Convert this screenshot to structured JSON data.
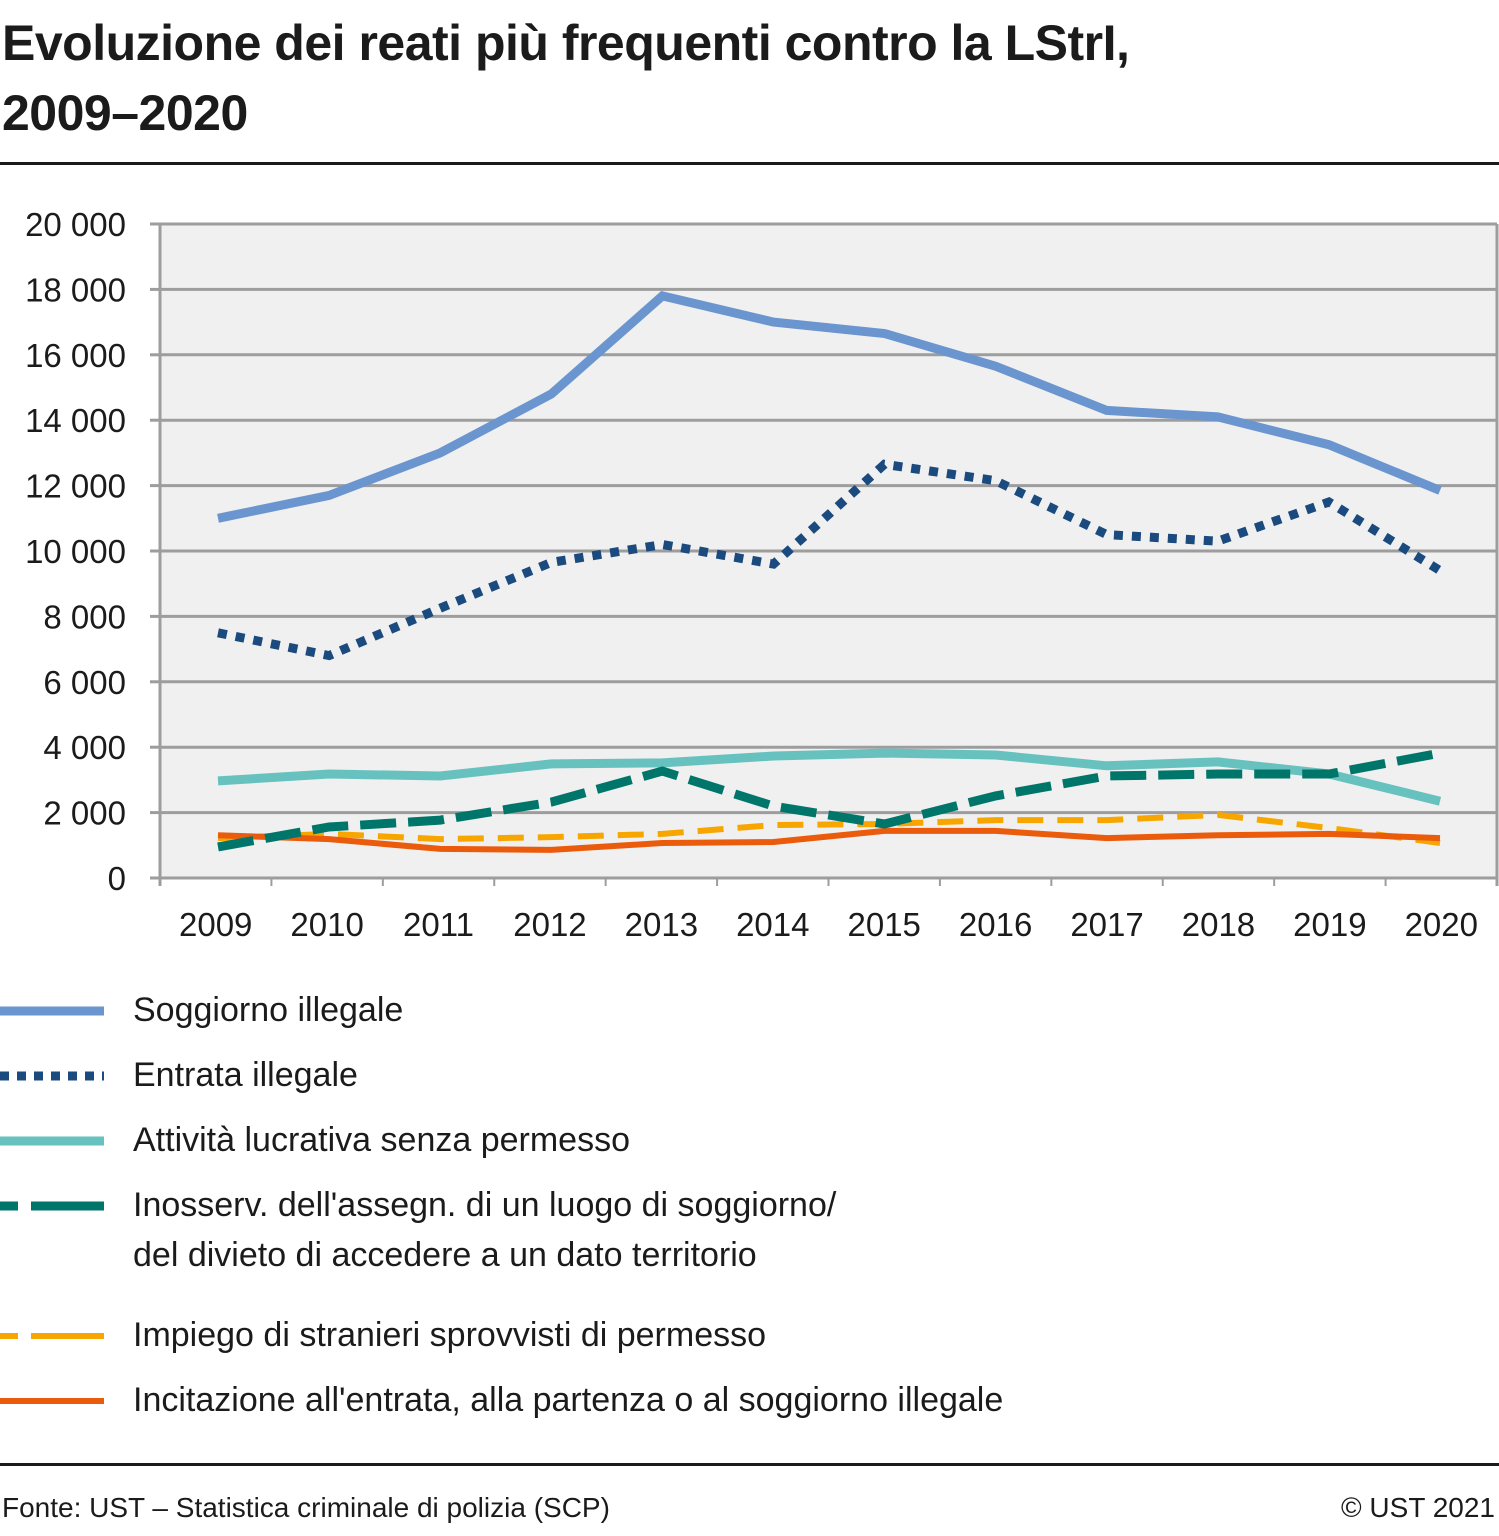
{
  "header": {
    "title_line1": "Evoluzione dei reati più frequenti contro la LStrI,",
    "title_line2": "2009–2020"
  },
  "chart_data": {
    "type": "line",
    "title": "Evoluzione dei reati più frequenti contro la LStrI, 2009–2020",
    "xlabel": "",
    "ylabel": "",
    "ylim": [
      0,
      20000
    ],
    "y_ticks": [
      0,
      2000,
      4000,
      6000,
      8000,
      10000,
      12000,
      14000,
      16000,
      18000,
      20000
    ],
    "y_tick_labels": [
      "0",
      "2 000",
      "4 000",
      "6 000",
      "8 000",
      "10 000",
      "12 000",
      "14 000",
      "16 000",
      "18 000",
      "20 000"
    ],
    "categories": [
      "2009",
      "2010",
      "2011",
      "2012",
      "2013",
      "2014",
      "2015",
      "2016",
      "2017",
      "2018",
      "2019",
      "2020"
    ],
    "grid": true,
    "legend_position": "bottom",
    "series": [
      {
        "name": "Soggiorno illegale",
        "color": "#6a95cf",
        "style": "solid",
        "values": [
          11000,
          11700,
          13000,
          14800,
          17800,
          17000,
          16650,
          15650,
          14300,
          14100,
          13250,
          11850
        ]
      },
      {
        "name": "Entrata illegale",
        "color": "#1b4a7e",
        "style": "dotted",
        "values": [
          7500,
          6800,
          8250,
          9650,
          10200,
          9600,
          12650,
          12150,
          10500,
          10300,
          11500,
          9400
        ]
      },
      {
        "name": "Attività lucrativa senza permesso",
        "color": "#67c2bf",
        "style": "solid",
        "values": [
          2970,
          3180,
          3120,
          3490,
          3520,
          3730,
          3820,
          3760,
          3430,
          3550,
          3180,
          2350
        ]
      },
      {
        "name": "Inosserv. dell'assegn. di un luogo di soggiorno/\ndel divieto di accedere a un dato territorio",
        "color": "#00766a",
        "style": "dashed",
        "values": [
          950,
          1560,
          1770,
          2320,
          3270,
          2200,
          1650,
          2510,
          3120,
          3180,
          3180,
          3820
        ]
      },
      {
        "name": "Impiego di stranieri sprovvisti di permesso",
        "color": "#f7a600",
        "style": "dashed-thin",
        "values": [
          1220,
          1350,
          1190,
          1250,
          1350,
          1620,
          1650,
          1770,
          1770,
          1930,
          1530,
          1070
        ]
      },
      {
        "name": "Incitazione all'entrata, alla partenza o al soggiorno illegale",
        "color": "#ea5b0c",
        "style": "solid-thin",
        "values": [
          1310,
          1190,
          890,
          860,
          1070,
          1100,
          1440,
          1440,
          1220,
          1310,
          1350,
          1220
        ]
      }
    ]
  },
  "footer": {
    "source": "Fonte: UST – Statistica criminale di polizia (SCP)",
    "copyright": "© UST 2021"
  }
}
